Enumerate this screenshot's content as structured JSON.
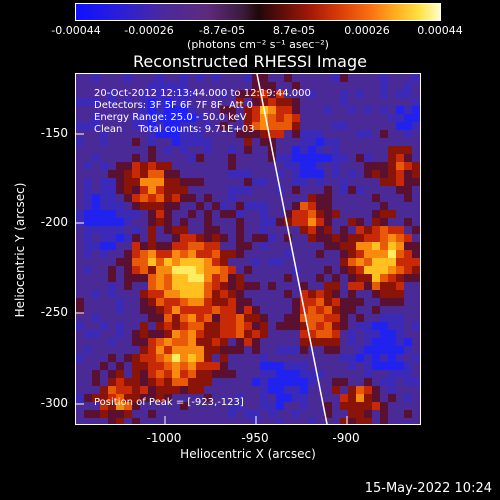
{
  "colorbar": {
    "ticks": [
      "-0.00044",
      "-0.00026",
      "-8.7e-05",
      "8.7e-05",
      "0.00026",
      "0.00044"
    ],
    "units": "(photons cm⁻² s⁻¹ asec⁻²)"
  },
  "title": "Reconstructed RHESSI Image",
  "info": {
    "line1": "20-Oct-2012 12:13:44.000 to 12:19:44.000",
    "line2": "Detectors: 3F 5F 6F 7F 8F, Att 0",
    "line3": "Energy Range: 25.0 - 50.0 keV",
    "line4": "Clean     Total counts: 9.71E+03",
    "peak": "Position of Peak = [-923,-123]"
  },
  "axes": {
    "ylabel": "Heliocentric Y (arcsec)",
    "xlabel": "Heliocentric X (arcsec)",
    "yticks": [
      "-150",
      "-200",
      "-250",
      "-300"
    ],
    "xticks": [
      "-1000",
      "-950",
      "-900"
    ]
  },
  "footer": "15-May-2022 10:24",
  "colors": {
    "low": "#1010ff",
    "mid": "#4a2a96",
    "high": "#fffcc8"
  }
}
